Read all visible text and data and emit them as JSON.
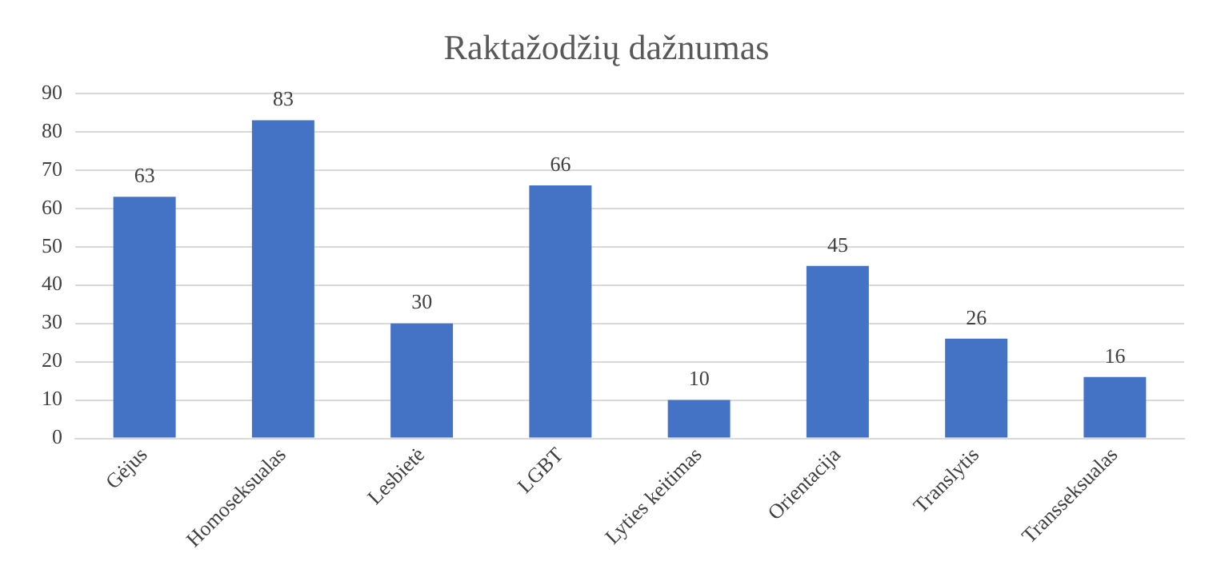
{
  "chart_data": {
    "type": "bar",
    "title": "Raktažodžių dažnumas",
    "categories": [
      "Gėjus",
      "Homoseksualas",
      "Lesbietė",
      "LGBT",
      "Lyties keitimas",
      "Orientacija",
      "Translytis",
      "Transseksualas"
    ],
    "values": [
      63,
      83,
      30,
      66,
      10,
      45,
      26,
      16
    ],
    "color": "#4472c4",
    "ylim": [
      0,
      90
    ],
    "yticks": [
      0,
      10,
      20,
      30,
      40,
      50,
      60,
      70,
      80,
      90
    ],
    "grid": "y",
    "data_labels": true
  }
}
